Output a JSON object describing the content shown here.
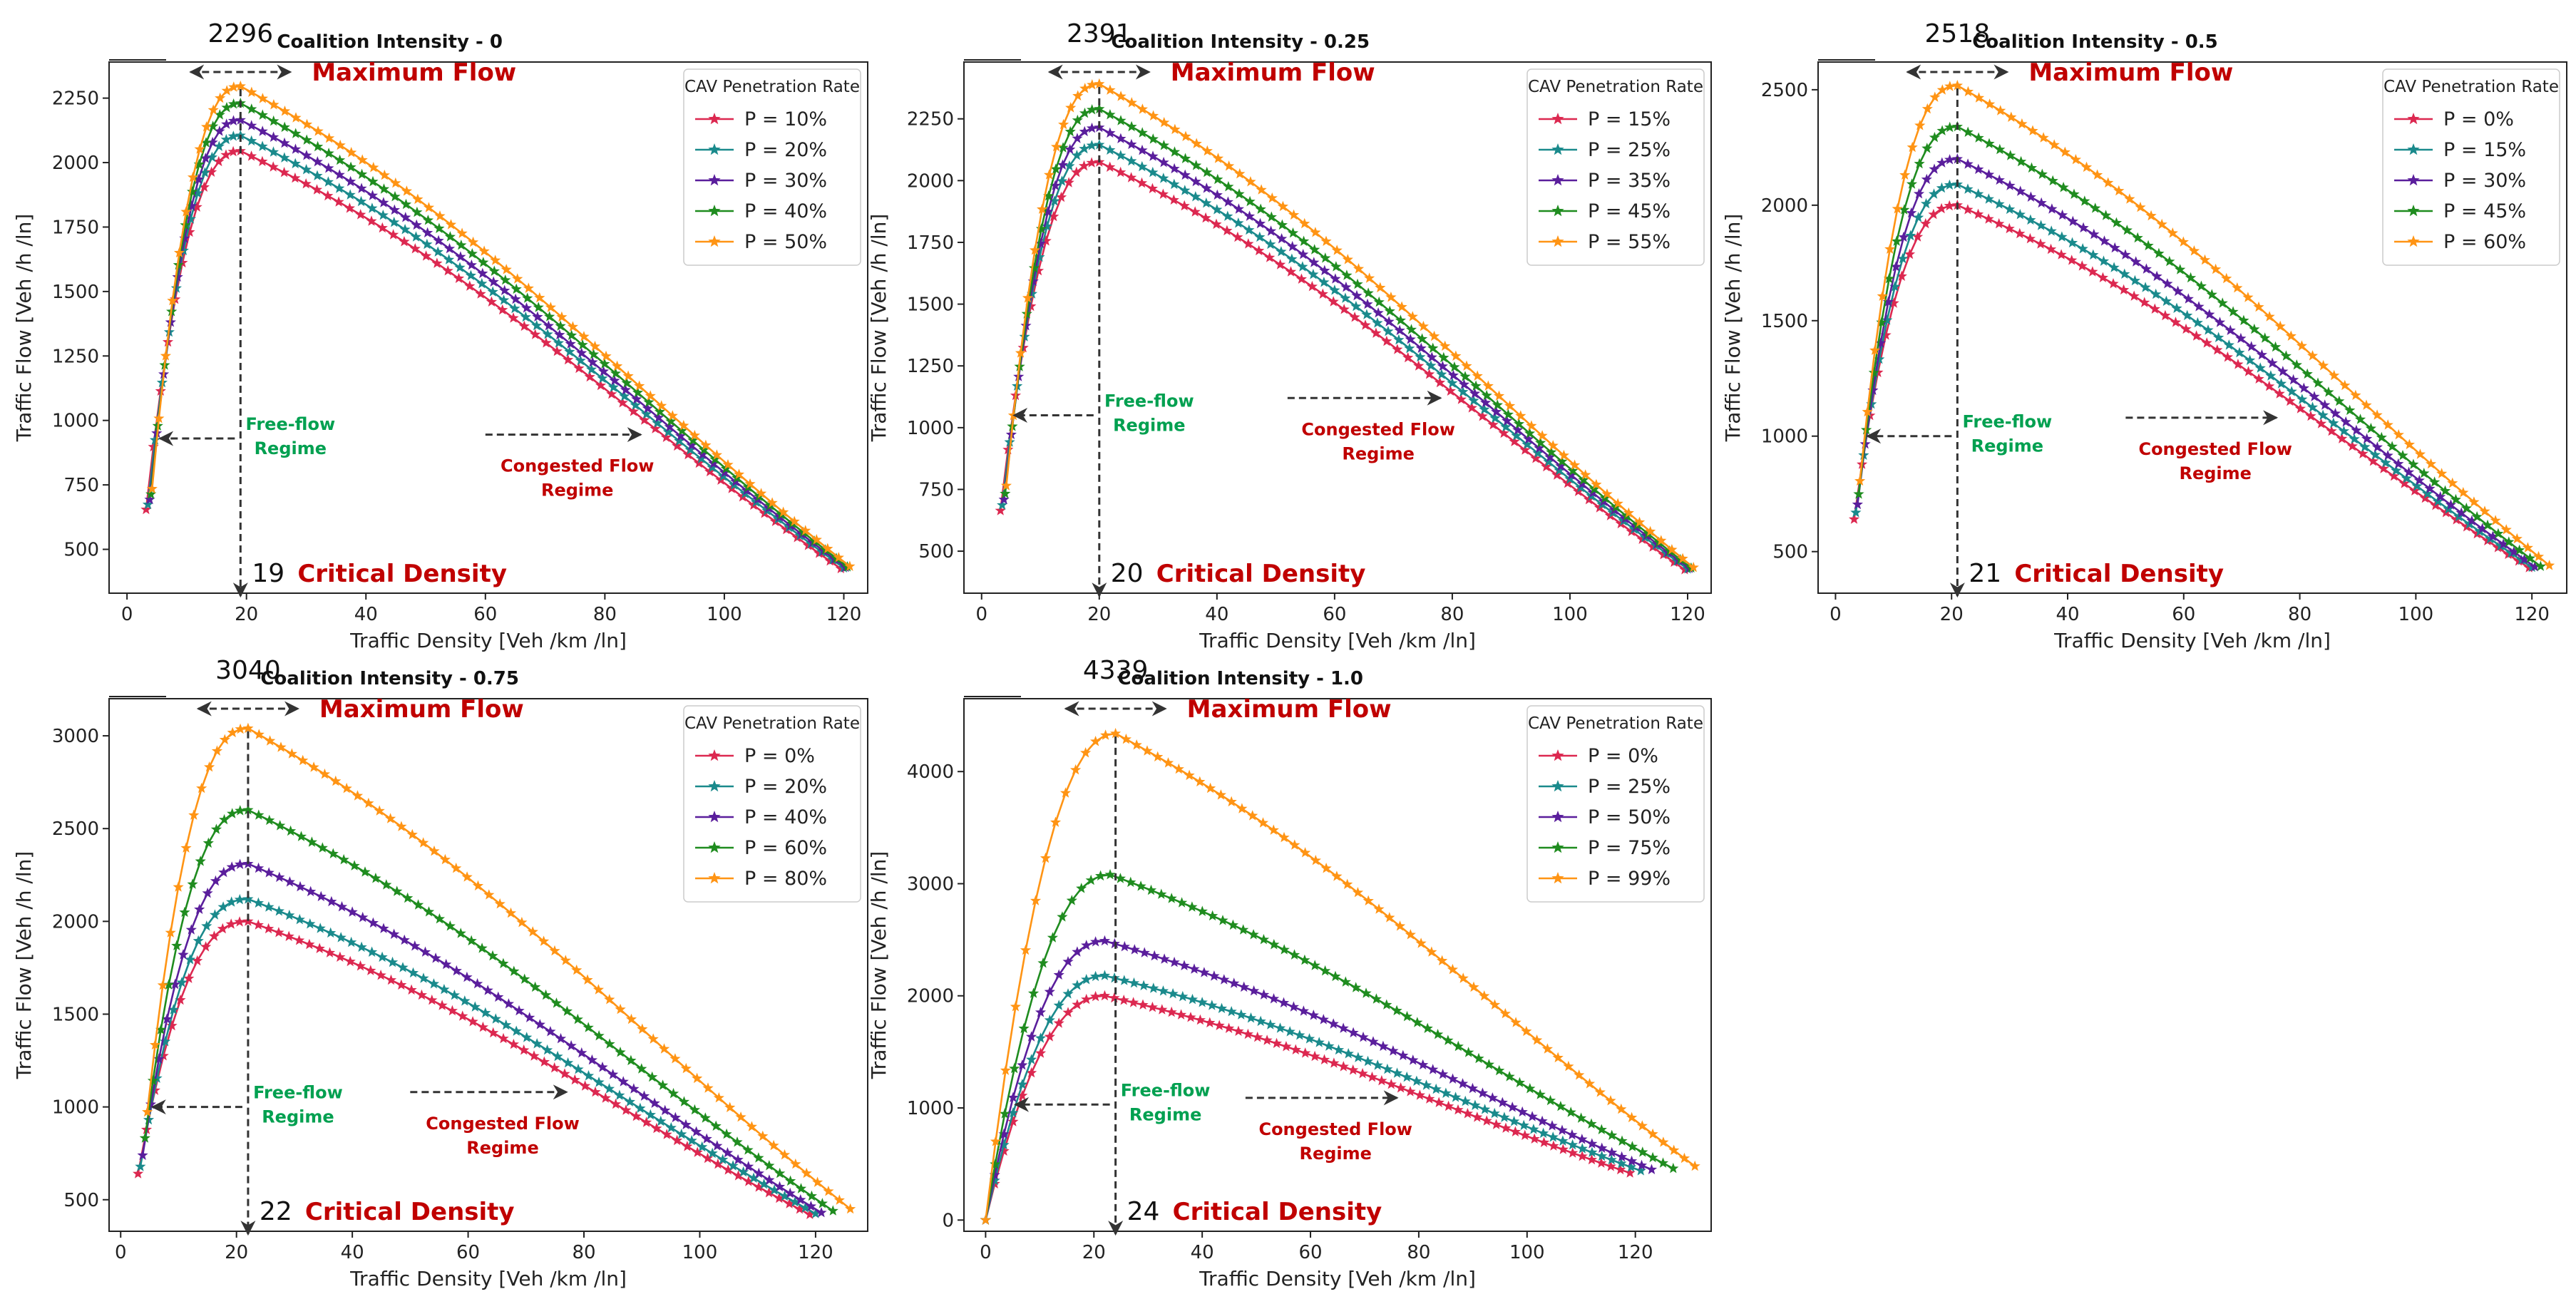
{
  "figure": {
    "regimes": {
      "free_flow": "Free-flow\nRegime",
      "congested": "Congested Flow\nRegime"
    },
    "annotations": {
      "max_flow": "Maximum Flow",
      "critical_density": "Critical Density"
    },
    "colors": [
      "#dc2850",
      "#1a8a8c",
      "#5a1e9c",
      "#1f8c1f",
      "#ff9414"
    ],
    "arrow_color": "#333333"
  },
  "chart_data": [
    {
      "type": "line",
      "title": "Coalition Intensity - 0",
      "xlabel": "Traffic Density [Veh /km /ln]",
      "ylabel": "Traffic Flow [Veh /h /ln]",
      "xlim": [
        -3,
        124
      ],
      "ylim": [
        330,
        2390
      ],
      "xticks": [
        0,
        20,
        40,
        60,
        80,
        100,
        120
      ],
      "yticks": [
        500,
        750,
        1000,
        1250,
        1500,
        1750,
        2000,
        2250
      ],
      "legend_title": "CAV Penetration Rate",
      "legend_loc": "upper right",
      "series": [
        {
          "name": "P = 10%",
          "kc": 19,
          "qmax": 2045,
          "kj": 119.5,
          "qend": 425,
          "kstart": 3.2
        },
        {
          "name": "P = 20%",
          "kc": 19,
          "qmax": 2105,
          "kj": 120,
          "qend": 428,
          "kstart": 3.5
        },
        {
          "name": "P = 30%",
          "kc": 19,
          "qmax": 2165,
          "kj": 120.3,
          "qend": 430,
          "kstart": 3.8
        },
        {
          "name": "P = 40%",
          "kc": 19,
          "qmax": 2230,
          "kj": 120.6,
          "qend": 432,
          "kstart": 4.0
        },
        {
          "name": "P = 50%",
          "kc": 19,
          "qmax": 2296,
          "kj": 121,
          "qend": 434,
          "kstart": 4.2
        }
      ],
      "annotation": {
        "peak": "2296",
        "critical": "19",
        "peak_x": 19,
        "peak_y": 2296,
        "ff_y": 930,
        "cg_y": 945,
        "cg_x1": 60,
        "cg_x2": 86
      }
    },
    {
      "type": "line",
      "title": "Coalition Intensity - 0.25",
      "xlabel": "Traffic Density [Veh /km /ln]",
      "ylabel": "Traffic Flow [Veh /h /ln]",
      "xlim": [
        -3,
        124
      ],
      "ylim": [
        330,
        2480
      ],
      "xticks": [
        0,
        20,
        40,
        60,
        80,
        100,
        120
      ],
      "yticks": [
        500,
        750,
        1000,
        1250,
        1500,
        1750,
        2000,
        2250
      ],
      "legend_title": "CAV Penetration Rate",
      "legend_loc": "upper right",
      "series": [
        {
          "name": "P = 15%",
          "kc": 20,
          "qmax": 2075,
          "kj": 119.5,
          "qend": 425,
          "kstart": 3.2
        },
        {
          "name": "P = 25%",
          "kc": 20,
          "qmax": 2145,
          "kj": 120,
          "qend": 428,
          "kstart": 3.5
        },
        {
          "name": "P = 35%",
          "kc": 20,
          "qmax": 2215,
          "kj": 120.3,
          "qend": 430,
          "kstart": 3.8
        },
        {
          "name": "P = 45%",
          "kc": 20,
          "qmax": 2290,
          "kj": 120.6,
          "qend": 432,
          "kstart": 4.0
        },
        {
          "name": "P = 55%",
          "kc": 20,
          "qmax": 2391,
          "kj": 121,
          "qend": 434,
          "kstart": 4.2
        }
      ],
      "annotation": {
        "peak": "2391",
        "critical": "20",
        "peak_x": 20,
        "peak_y": 2391,
        "ff_y": 1050,
        "cg_y": 1120,
        "cg_x1": 52,
        "cg_x2": 78
      }
    },
    {
      "type": "line",
      "title": "Coalition Intensity - 0.5",
      "xlabel": "Traffic Density [Veh /km /ln]",
      "ylabel": "Traffic Flow [Veh /h /ln]",
      "xlim": [
        -3,
        126
      ],
      "ylim": [
        320,
        2620
      ],
      "xticks": [
        0,
        20,
        40,
        60,
        80,
        100,
        120
      ],
      "yticks": [
        500,
        1000,
        1500,
        2000,
        2500
      ],
      "legend_title": "CAV Penetration Rate",
      "legend_loc": "upper right",
      "series": [
        {
          "name": "P = 0%",
          "kc": 21,
          "qmax": 2000,
          "kj": 119.5,
          "qend": 430,
          "kstart": 3.2
        },
        {
          "name": "P = 15%",
          "kc": 21,
          "qmax": 2090,
          "kj": 120,
          "qend": 432,
          "kstart": 3.5
        },
        {
          "name": "P = 30%",
          "kc": 21,
          "qmax": 2200,
          "kj": 120.5,
          "qend": 434,
          "kstart": 3.8
        },
        {
          "name": "P = 45%",
          "kc": 21,
          "qmax": 2340,
          "kj": 121.5,
          "qend": 436,
          "kstart": 4.0
        },
        {
          "name": "P = 60%",
          "kc": 21,
          "qmax": 2518,
          "kj": 123,
          "qend": 440,
          "kstart": 4.2
        }
      ],
      "annotation": {
        "peak": "2518",
        "critical": "21",
        "peak_x": 21,
        "peak_y": 2518,
        "ff_y": 1000,
        "cg_y": 1080,
        "cg_x1": 50,
        "cg_x2": 76
      }
    },
    {
      "type": "line",
      "title": "Coalition Intensity - 0.75",
      "xlabel": "Traffic Density [Veh /km /ln]",
      "ylabel": "Traffic Flow [Veh /h /ln]",
      "xlim": [
        -2,
        129
      ],
      "ylim": [
        330,
        3200
      ],
      "xticks": [
        0,
        20,
        40,
        60,
        80,
        100,
        120
      ],
      "yticks": [
        500,
        1000,
        1500,
        2000,
        2500,
        3000
      ],
      "legend_title": "CAV Penetration Rate",
      "legend_loc": "upper right",
      "series": [
        {
          "name": "P = 0%",
          "kc": 22,
          "qmax": 2000,
          "kj": 119,
          "qend": 420,
          "kstart": 3.0
        },
        {
          "name": "P = 20%",
          "kc": 22,
          "qmax": 2120,
          "kj": 120,
          "qend": 425,
          "kstart": 3.4
        },
        {
          "name": "P = 40%",
          "kc": 22,
          "qmax": 2310,
          "kj": 121,
          "qend": 430,
          "kstart": 3.8
        },
        {
          "name": "P = 60%",
          "kc": 22,
          "qmax": 2600,
          "kj": 123,
          "qend": 440,
          "kstart": 4.2
        },
        {
          "name": "P = 80%",
          "kc": 22,
          "qmax": 3040,
          "kj": 126,
          "qend": 450,
          "kstart": 4.6
        }
      ],
      "annotation": {
        "peak": "3040",
        "critical": "22",
        "peak_x": 22,
        "peak_y": 3040,
        "ff_y": 1000,
        "cg_y": 1080,
        "cg_x1": 50,
        "cg_x2": 77
      }
    },
    {
      "type": "line",
      "title": "Coalition Intensity - 1.0",
      "xlabel": "Traffic Density [Veh /km /ln]",
      "ylabel": "Traffic Flow [Veh /h /ln]",
      "xlim": [
        -4,
        134
      ],
      "ylim": [
        -100,
        4650
      ],
      "xticks": [
        0,
        20,
        40,
        60,
        80,
        100,
        120
      ],
      "yticks": [
        0,
        1000,
        2000,
        3000,
        4000
      ],
      "legend_title": "CAV Penetration Rate",
      "legend_loc": "upper right",
      "series": [
        {
          "name": "P = 0%",
          "kc": 22,
          "qmax": 2000,
          "kj": 119,
          "qend": 420,
          "kstart": 0
        },
        {
          "name": "P = 25%",
          "kc": 22,
          "qmax": 2180,
          "kj": 121,
          "qend": 440,
          "kstart": 0
        },
        {
          "name": "P = 50%",
          "kc": 22,
          "qmax": 2490,
          "kj": 123,
          "qend": 450,
          "kstart": 0
        },
        {
          "name": "P = 75%",
          "kc": 23,
          "qmax": 3080,
          "kj": 127,
          "qend": 460,
          "kstart": 0
        },
        {
          "name": "P = 99%",
          "kc": 24,
          "qmax": 4339,
          "kj": 131,
          "qend": 480,
          "kstart": 0
        }
      ],
      "annotation": {
        "peak": "4339",
        "critical": "24",
        "peak_x": 24,
        "peak_y": 4339,
        "ff_y": 1030,
        "cg_y": 1090,
        "cg_x1": 48,
        "cg_x2": 76
      }
    }
  ]
}
